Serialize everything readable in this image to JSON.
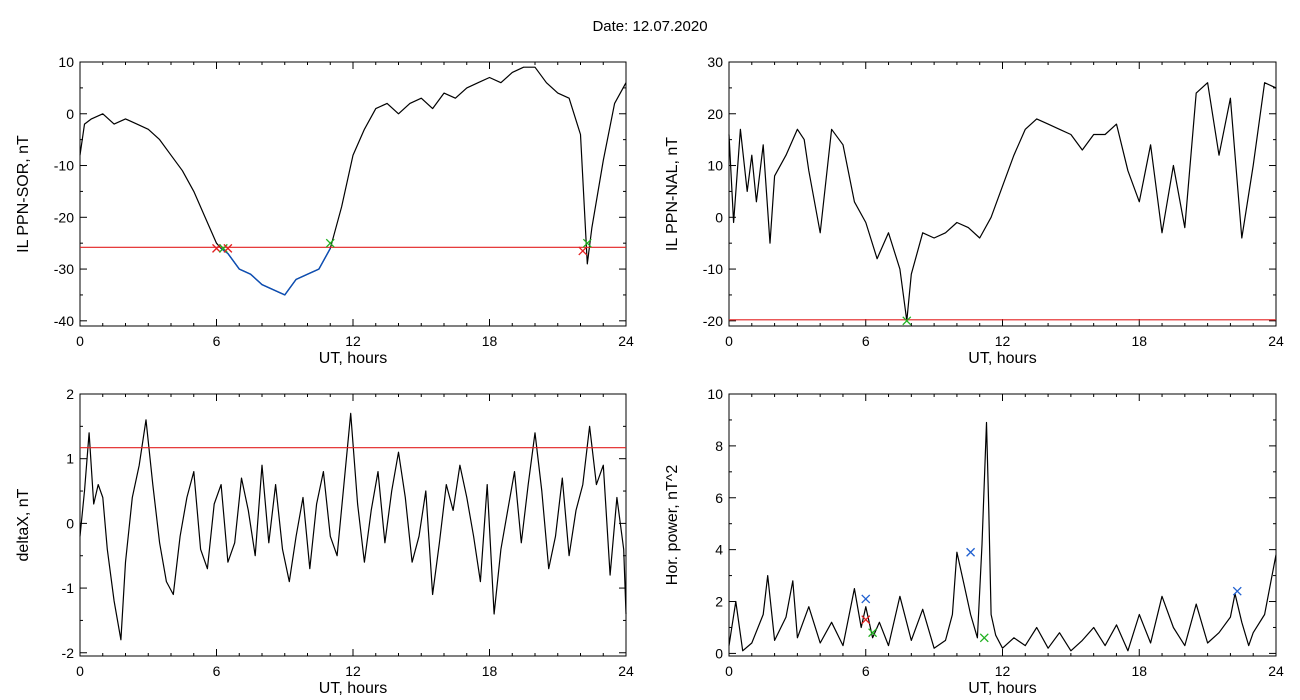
{
  "page": {
    "title": "Date:  12.07.2020"
  },
  "colors": {
    "background": "#ffffff",
    "axis": "#000000",
    "series": "#000000",
    "highlight_series": "#0b4fb8",
    "threshold": "#e32020",
    "marker_green": "#20b020",
    "marker_red": "#e32020",
    "marker_blue": "#2060d0"
  },
  "chart_data": [
    {
      "type": "line",
      "xlabel": "UT, hours",
      "ylabel": "IL PPN-SOR, nT",
      "xlim": [
        0,
        24
      ],
      "ylim": [
        -41,
        10
      ],
      "xticks": [
        0,
        6,
        12,
        18,
        24
      ],
      "yticks": [
        10,
        0,
        -10,
        -20,
        -30,
        -40
      ],
      "grid": false,
      "series": [
        {
          "color": "#000000",
          "x": [
            0,
            0.2,
            0.5,
            1,
            1.5,
            2,
            2.5,
            3,
            3.5,
            4,
            4.5,
            5,
            5.5,
            6,
            6.2,
            6.5,
            7,
            7.5,
            8,
            8.5,
            9,
            9.5,
            10,
            10.5,
            11,
            11.5,
            12,
            12.5,
            13,
            13.5,
            14,
            14.5,
            15,
            15.5,
            16,
            16.5,
            17,
            17.5,
            18,
            18.5,
            19,
            19.5,
            20,
            20.5,
            21,
            21.5,
            22,
            22.3,
            22.5,
            23,
            23.5,
            24
          ],
          "y": [
            -8,
            -2,
            -1,
            0,
            -2,
            -1,
            -2,
            -3,
            -5,
            -8,
            -11,
            -15,
            -20,
            -25,
            -26,
            -27,
            -30,
            -31,
            -33,
            -34,
            -35,
            -32,
            -31,
            -30,
            -26,
            -18,
            -8,
            -3,
            1,
            2,
            0,
            2,
            3,
            1,
            4,
            3,
            5,
            6,
            7,
            6,
            8,
            9,
            9,
            6,
            4,
            3,
            -4,
            -29,
            -22,
            -9,
            2,
            6
          ]
        }
      ],
      "highlight": {
        "color": "#0b4fb8",
        "x_range": [
          6.2,
          11
        ]
      },
      "threshold": {
        "y": -25.8,
        "color": "#e32020"
      },
      "markers": [
        {
          "x": 6.0,
          "y": -26,
          "color": "#e32020"
        },
        {
          "x": 6.3,
          "y": -26,
          "color": "#20b020"
        },
        {
          "x": 6.5,
          "y": -26,
          "color": "#e32020"
        },
        {
          "x": 11.0,
          "y": -25,
          "color": "#20b020"
        },
        {
          "x": 22.1,
          "y": -26.5,
          "color": "#e32020"
        },
        {
          "x": 22.3,
          "y": -25,
          "color": "#20b020"
        }
      ]
    },
    {
      "type": "line",
      "xlabel": "UT, hours",
      "ylabel": "IL PPN-NAL, nT",
      "xlim": [
        0,
        24
      ],
      "ylim": [
        -21,
        30
      ],
      "xticks": [
        0,
        6,
        12,
        18,
        24
      ],
      "yticks": [
        30,
        20,
        10,
        0,
        -10,
        -20
      ],
      "grid": false,
      "series": [
        {
          "color": "#000000",
          "x": [
            0,
            0.2,
            0.5,
            0.8,
            1,
            1.2,
            1.5,
            1.8,
            2,
            2.5,
            3,
            3.3,
            3.5,
            4,
            4.5,
            5,
            5.5,
            6,
            6.5,
            7,
            7.5,
            7.8,
            8,
            8.5,
            9,
            9.5,
            10,
            10.5,
            11,
            11.5,
            12,
            12.5,
            13,
            13.5,
            14,
            14.5,
            15,
            15.5,
            16,
            16.5,
            17,
            17.5,
            18,
            18.5,
            19,
            19.5,
            20,
            20.5,
            21,
            21.5,
            22,
            22.5,
            23,
            23.5,
            24
          ],
          "y": [
            16,
            -1,
            17,
            5,
            12,
            3,
            14,
            -5,
            8,
            12,
            17,
            15,
            9,
            -3,
            17,
            14,
            3,
            -1,
            -8,
            -3,
            -10,
            -20,
            -11,
            -3,
            -4,
            -3,
            -1,
            -2,
            -4,
            0,
            6,
            12,
            17,
            19,
            18,
            17,
            16,
            13,
            16,
            16,
            18,
            9,
            3,
            14,
            -3,
            10,
            -2,
            24,
            26,
            12,
            23,
            -4,
            10,
            26,
            25
          ]
        }
      ],
      "threshold": {
        "y": -19.8,
        "color": "#e32020"
      },
      "markers": [
        {
          "x": 7.8,
          "y": -20,
          "color": "#20b020"
        }
      ]
    },
    {
      "type": "line",
      "xlabel": "UT, hours",
      "ylabel": "deltaX, nT",
      "xlim": [
        0,
        24
      ],
      "ylim": [
        -2.05,
        2
      ],
      "xticks": [
        0,
        6,
        12,
        18,
        24
      ],
      "yticks": [
        2,
        1,
        0,
        -1,
        -2
      ],
      "grid": false,
      "series": [
        {
          "color": "#000000",
          "x": [
            0,
            0.2,
            0.4,
            0.6,
            0.8,
            1,
            1.2,
            1.5,
            1.8,
            2,
            2.3,
            2.6,
            2.9,
            3.2,
            3.5,
            3.8,
            4.1,
            4.4,
            4.7,
            5,
            5.3,
            5.6,
            5.9,
            6.2,
            6.5,
            6.8,
            7.1,
            7.4,
            7.7,
            8,
            8.3,
            8.6,
            8.9,
            9.2,
            9.5,
            9.8,
            10.1,
            10.4,
            10.7,
            11,
            11.3,
            11.6,
            11.9,
            12.2,
            12.5,
            12.8,
            13.1,
            13.4,
            13.7,
            14,
            14.3,
            14.6,
            14.9,
            15.2,
            15.5,
            15.8,
            16.1,
            16.4,
            16.7,
            17,
            17.3,
            17.6,
            17.9,
            18.2,
            18.5,
            18.8,
            19.1,
            19.4,
            19.7,
            20,
            20.3,
            20.6,
            20.9,
            21.2,
            21.5,
            21.8,
            22.1,
            22.4,
            22.7,
            23,
            23.3,
            23.6,
            23.9,
            24
          ],
          "y": [
            -0.2,
            0.5,
            1.4,
            0.3,
            0.6,
            0.4,
            -0.4,
            -1.2,
            -1.8,
            -0.6,
            0.4,
            0.9,
            1.6,
            0.6,
            -0.3,
            -0.9,
            -1.1,
            -0.2,
            0.4,
            0.8,
            -0.4,
            -0.7,
            0.3,
            0.6,
            -0.6,
            -0.3,
            0.7,
            0.2,
            -0.5,
            0.9,
            -0.3,
            0.6,
            -0.4,
            -0.9,
            -0.2,
            0.4,
            -0.7,
            0.3,
            0.8,
            -0.2,
            -0.5,
            0.6,
            1.7,
            0.3,
            -0.6,
            0.2,
            0.8,
            -0.3,
            0.5,
            1.1,
            0.4,
            -0.6,
            -0.2,
            0.5,
            -1.1,
            -0.3,
            0.6,
            0.2,
            0.9,
            0.4,
            -0.2,
            -0.9,
            0.6,
            -1.4,
            -0.4,
            0.2,
            0.8,
            -0.3,
            0.6,
            1.4,
            0.5,
            -0.7,
            -0.2,
            0.7,
            -0.5,
            0.2,
            0.6,
            1.5,
            0.6,
            0.9,
            -0.8,
            0.4,
            -0.4,
            -1.4
          ]
        }
      ],
      "threshold": {
        "y": 1.17,
        "color": "#e32020"
      },
      "markers": []
    },
    {
      "type": "line",
      "xlabel": "UT, hours",
      "ylabel": "Hor. power, nT^2",
      "xlim": [
        0,
        24
      ],
      "ylim": [
        -0.1,
        10
      ],
      "xticks": [
        0,
        6,
        12,
        18,
        24
      ],
      "yticks": [
        10,
        8,
        6,
        4,
        2,
        0
      ],
      "grid": false,
      "series": [
        {
          "color": "#000000",
          "x": [
            0,
            0.3,
            0.6,
            1,
            1.5,
            1.7,
            2,
            2.5,
            2.8,
            3,
            3.5,
            4,
            4.5,
            5,
            5.5,
            5.8,
            6,
            6.3,
            6.6,
            7,
            7.5,
            8,
            8.5,
            9,
            9.5,
            9.8,
            10,
            10.3,
            10.6,
            10.9,
            11.1,
            11.3,
            11.4,
            11.5,
            11.7,
            12,
            12.5,
            13,
            13.5,
            14,
            14.5,
            15,
            15.5,
            16,
            16.5,
            17,
            17.5,
            18,
            18.5,
            19,
            19.5,
            20,
            20.5,
            21,
            21.5,
            22,
            22.2,
            22.5,
            22.8,
            23,
            23.5,
            24
          ],
          "y": [
            0.3,
            2,
            0.1,
            0.4,
            1.5,
            3,
            0.5,
            1.4,
            2.8,
            0.6,
            1.8,
            0.4,
            1.2,
            0.3,
            2.5,
            1.0,
            1.8,
            0.6,
            1.2,
            0.3,
            2.2,
            0.5,
            1.7,
            0.2,
            0.5,
            1.5,
            3.9,
            2.7,
            1.5,
            0.6,
            4.2,
            8.9,
            5.5,
            1.5,
            0.7,
            0.2,
            0.6,
            0.3,
            1.0,
            0.2,
            0.8,
            0.1,
            0.5,
            1.0,
            0.3,
            1.1,
            0.1,
            1.5,
            0.4,
            2.2,
            1.0,
            0.3,
            1.9,
            0.4,
            0.8,
            1.4,
            2.3,
            1.2,
            0.3,
            0.8,
            1.5,
            3.8
          ]
        }
      ],
      "markers": [
        {
          "x": 6.0,
          "y": 2.1,
          "color": "#2060d0"
        },
        {
          "x": 6.0,
          "y": 1.3,
          "color": "#e32020"
        },
        {
          "x": 6.3,
          "y": 0.8,
          "color": "#20b020"
        },
        {
          "x": 10.6,
          "y": 3.9,
          "color": "#2060d0"
        },
        {
          "x": 11.2,
          "y": 0.6,
          "color": "#20b020"
        },
        {
          "x": 22.3,
          "y": 2.4,
          "color": "#2060d0"
        }
      ]
    }
  ]
}
